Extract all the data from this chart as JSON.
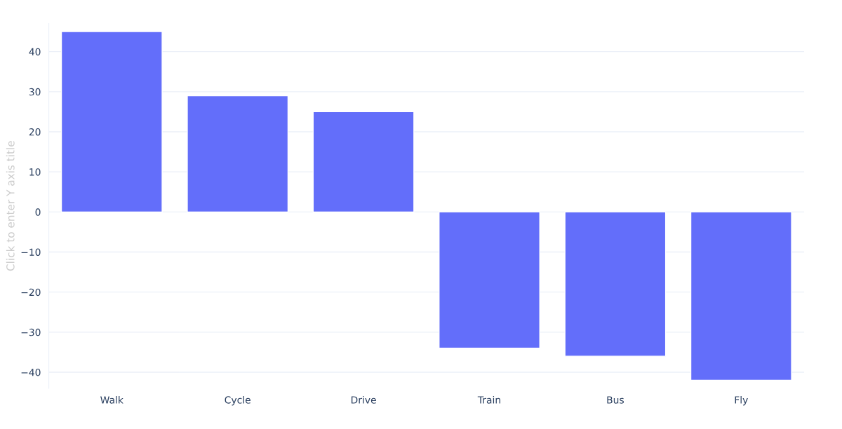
{
  "chart_data": {
    "type": "bar",
    "ylabel": "Click to enter Y axis title",
    "categories": [
      "Walk",
      "Cycle",
      "Drive",
      "Train",
      "Bus",
      "Fly"
    ],
    "values": [
      45,
      29,
      25,
      -34,
      -36,
      -42
    ],
    "color": "#636efa",
    "ylim": [
      -44,
      47
    ],
    "yticks": [
      {
        "value": -40,
        "label": "−40"
      },
      {
        "value": -30,
        "label": "−30"
      },
      {
        "value": -20,
        "label": "−20"
      },
      {
        "value": -10,
        "label": "−10"
      },
      0,
      10,
      20,
      30,
      40
    ],
    "grid": "y"
  }
}
